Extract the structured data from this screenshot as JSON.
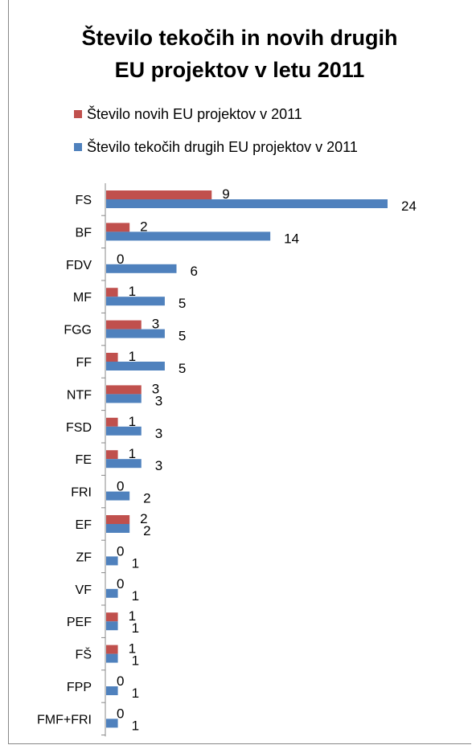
{
  "chart_data": {
    "type": "bar",
    "orientation": "horizontal",
    "title_lines": [
      "Število tekočih in novih drugih",
      "EU projektov v letu 2011"
    ],
    "categories": [
      "FS",
      "BF",
      "FDV",
      "MF",
      "FGG",
      "FF",
      "NTF",
      "FSD",
      "FE",
      "FRI",
      "EF",
      "ZF",
      "VF",
      "PEF",
      "FŠ",
      "FPP",
      "FMF+FRI"
    ],
    "series": [
      {
        "name": "Število novih EU projektov v 2011",
        "color": "#c0504d",
        "values": [
          9,
          2,
          0,
          1,
          3,
          1,
          3,
          1,
          1,
          0,
          2,
          0,
          0,
          1,
          1,
          0,
          0
        ]
      },
      {
        "name": "Število tekočih drugih EU projektov v 2011",
        "color": "#4f81bd",
        "values": [
          24,
          14,
          6,
          5,
          5,
          5,
          3,
          3,
          3,
          2,
          2,
          1,
          1,
          1,
          1,
          1,
          1
        ]
      }
    ],
    "legend_position": "top",
    "grid": false,
    "xlim": [
      0,
      24
    ]
  }
}
